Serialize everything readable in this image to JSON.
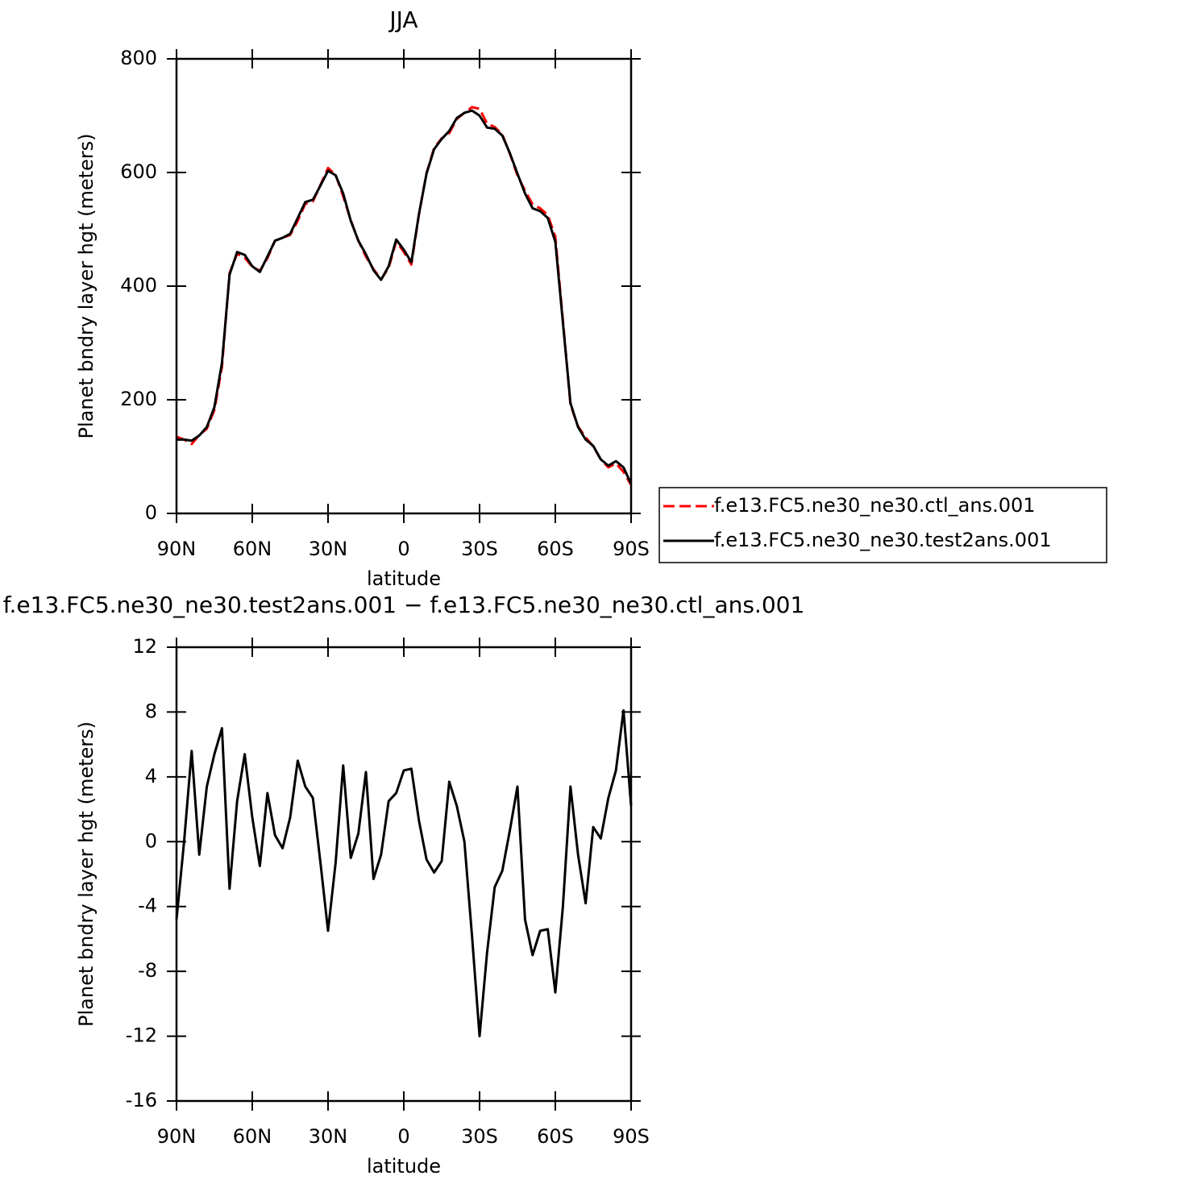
{
  "chart_data": [
    {
      "type": "line",
      "title": "JJA",
      "xlabel": "latitude",
      "ylabel": "Planet bndry layer hgt (meters)",
      "x": [
        90,
        87,
        84,
        81,
        78,
        75,
        72,
        69,
        66,
        63,
        60,
        57,
        54,
        51,
        48,
        45,
        42,
        39,
        36,
        33,
        30,
        27,
        24,
        21,
        18,
        15,
        12,
        9,
        6,
        3,
        0,
        -3,
        -6,
        -9,
        -12,
        -15,
        -18,
        -21,
        -24,
        -27,
        -30,
        -33,
        -36,
        -39,
        -42,
        -45,
        -48,
        -51,
        -54,
        -57,
        -60,
        -63,
        -66,
        -69,
        -72,
        -75,
        -78,
        -81,
        -84,
        -87,
        -90
      ],
      "xlim": [
        90,
        -90
      ],
      "xticks": [
        {
          "value": 90,
          "label": "90N"
        },
        {
          "value": 60,
          "label": "60N"
        },
        {
          "value": 30,
          "label": "30N"
        },
        0,
        {
          "value": -30,
          "label": "30S"
        },
        {
          "value": -60,
          "label": "60S"
        },
        {
          "value": -90,
          "label": "90S"
        }
      ],
      "ylim": [
        0,
        800
      ],
      "yticks": [
        0,
        200,
        400,
        600,
        800
      ],
      "legend": "right",
      "series": [
        {
          "name": "f.e13.FC5.ne30_ne30.ctl_ans.001",
          "color": "#ff0000",
          "dashed": true,
          "values": [
            135,
            130,
            122,
            138,
            149,
            182,
            258,
            423,
            457,
            450,
            434,
            427,
            449,
            480,
            485,
            490,
            515,
            545,
            549,
            578,
            608,
            596,
            558,
            516,
            480,
            452,
            430,
            412,
            432,
            479,
            460,
            438,
            526,
            599,
            643,
            660,
            669,
            694,
            705,
            715,
            712,
            686,
            680,
            667,
            633,
            595,
            568,
            544,
            537,
            525,
            487,
            340,
            191,
            153,
            134,
            118,
            95,
            81,
            88,
            73,
            50
          ]
        },
        {
          "name": "f.e13.FC5.ne30_ne30.test2ans.001",
          "color": "#000000",
          "dashed": false,
          "values": [
            130,
            130,
            128,
            137,
            152,
            187,
            265,
            420,
            460,
            455,
            435,
            425,
            452,
            480,
            485,
            492,
            520,
            548,
            552,
            577,
            603,
            595,
            563,
            515,
            480,
            456,
            428,
            411,
            435,
            482,
            464,
            442,
            527,
            598,
            641,
            659,
            673,
            696,
            705,
            709,
            700,
            679,
            677,
            665,
            634,
            598,
            563,
            537,
            532,
            520,
            478,
            336,
            194,
            152,
            130,
            119,
            95,
            84,
            92,
            81,
            52
          ]
        }
      ]
    },
    {
      "type": "line",
      "title": "f.e13.FC5.ne30_ne30.test2ans.001 − f.e13.FC5.ne30_ne30.ctl_ans.001",
      "xlabel": "latitude",
      "ylabel": "Planet bndry layer hgt (meters)",
      "x": [
        90,
        87,
        84,
        81,
        78,
        75,
        72,
        69,
        66,
        63,
        60,
        57,
        54,
        51,
        48,
        45,
        42,
        39,
        36,
        33,
        30,
        27,
        24,
        21,
        18,
        15,
        12,
        9,
        6,
        3,
        0,
        -3,
        -6,
        -9,
        -12,
        -15,
        -18,
        -21,
        -24,
        -27,
        -30,
        -33,
        -36,
        -39,
        -42,
        -45,
        -48,
        -51,
        -54,
        -57,
        -60,
        -63,
        -66,
        -69,
        -72,
        -75,
        -78,
        -81,
        -84,
        -87,
        -90
      ],
      "xlim": [
        90,
        -90
      ],
      "xticks": [
        {
          "value": 90,
          "label": "90N"
        },
        {
          "value": 60,
          "label": "60N"
        },
        {
          "value": 30,
          "label": "30N"
        },
        0,
        {
          "value": -30,
          "label": "30S"
        },
        {
          "value": -60,
          "label": "60S"
        },
        {
          "value": -90,
          "label": "90S"
        }
      ],
      "ylim": [
        -16,
        12
      ],
      "yticks": [
        -16,
        -12,
        -8,
        -4,
        0,
        4,
        8,
        12
      ],
      "series": [
        {
          "color": "#000000",
          "dashed": false,
          "values": [
            -4.8,
            0,
            5.6,
            -0.8,
            3.4,
            5.4,
            7,
            -2.9,
            2.5,
            5.4,
            1.5,
            -1.5,
            3,
            0.4,
            -0.4,
            1.5,
            5,
            3.4,
            2.7,
            -1.3,
            -5.5,
            -1.3,
            4.7,
            -1,
            0.5,
            4.3,
            -2.3,
            -0.8,
            2.5,
            3,
            4.4,
            4.5,
            1.3,
            -1.1,
            -1.9,
            -1.2,
            3.7,
            2.2,
            0,
            -5.8,
            -12,
            -6.8,
            -2.8,
            -1.8,
            0.7,
            3.4,
            -4.8,
            -7,
            -5.5,
            -5.4,
            -9.3,
            -4,
            3.4,
            -0.8,
            -3.8,
            0.9,
            0.2,
            2.7,
            4.4,
            8.1,
            2.2
          ]
        }
      ]
    }
  ]
}
